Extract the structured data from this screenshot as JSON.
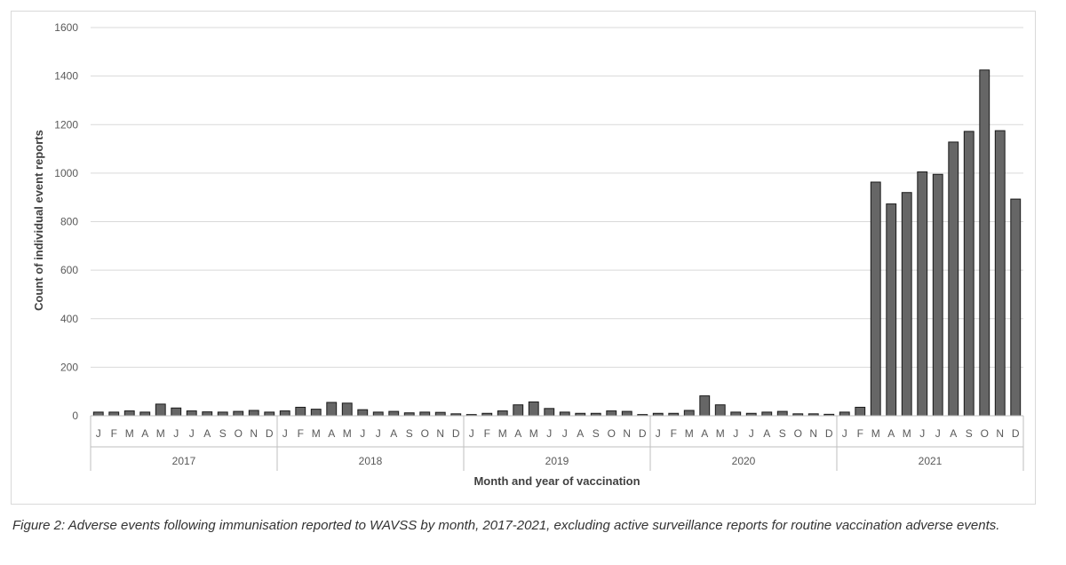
{
  "chart_data": {
    "type": "bar",
    "xlabel": "Month and year of vaccination",
    "ylabel": "Count of individual event reports",
    "ylim": [
      0,
      1600
    ],
    "yticks": [
      0,
      200,
      400,
      600,
      800,
      1000,
      1200,
      1400,
      1600
    ],
    "grid": true,
    "bar_color": "#666666",
    "month_labels": [
      "J",
      "F",
      "M",
      "A",
      "M",
      "J",
      "J",
      "A",
      "S",
      "O",
      "N",
      "D"
    ],
    "groups": [
      {
        "year": "2017",
        "values": [
          15,
          15,
          20,
          15,
          48,
          32,
          20,
          16,
          15,
          18,
          22,
          15
        ]
      },
      {
        "year": "2018",
        "values": [
          20,
          35,
          27,
          55,
          52,
          25,
          15,
          18,
          12,
          15,
          14,
          8
        ]
      },
      {
        "year": "2019",
        "values": [
          5,
          10,
          20,
          45,
          57,
          30,
          15,
          10,
          10,
          20,
          18,
          5
        ]
      },
      {
        "year": "2020",
        "values": [
          10,
          10,
          22,
          82,
          45,
          15,
          10,
          15,
          18,
          8,
          8,
          6
        ]
      },
      {
        "year": "2021",
        "values": [
          15,
          35,
          963,
          873,
          920,
          1005,
          995,
          1128,
          1172,
          1425,
          1175,
          893
        ]
      }
    ]
  },
  "caption": "Figure 2: Adverse events following immunisation reported to WAVSS by month, 2017-2021, excluding active surveillance reports for routine vaccination adverse events."
}
